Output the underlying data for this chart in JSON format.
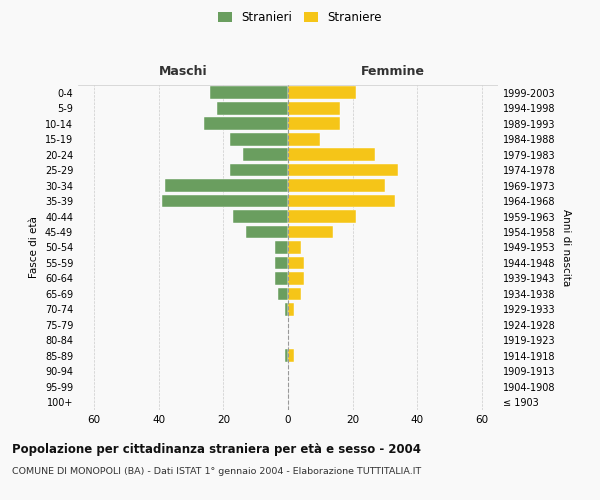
{
  "age_groups": [
    "100+",
    "95-99",
    "90-94",
    "85-89",
    "80-84",
    "75-79",
    "70-74",
    "65-69",
    "60-64",
    "55-59",
    "50-54",
    "45-49",
    "40-44",
    "35-39",
    "30-34",
    "25-29",
    "20-24",
    "15-19",
    "10-14",
    "5-9",
    "0-4"
  ],
  "birth_years": [
    "≤ 1903",
    "1904-1908",
    "1909-1913",
    "1914-1918",
    "1919-1923",
    "1924-1928",
    "1929-1933",
    "1934-1938",
    "1939-1943",
    "1944-1948",
    "1949-1953",
    "1954-1958",
    "1959-1963",
    "1964-1968",
    "1969-1973",
    "1974-1978",
    "1979-1983",
    "1984-1988",
    "1989-1993",
    "1994-1998",
    "1999-2003"
  ],
  "maschi": [
    0,
    0,
    0,
    1,
    0,
    0,
    1,
    3,
    4,
    4,
    4,
    13,
    17,
    39,
    38,
    18,
    14,
    18,
    26,
    22,
    24
  ],
  "femmine": [
    0,
    0,
    0,
    2,
    0,
    0,
    2,
    4,
    5,
    5,
    4,
    14,
    21,
    33,
    30,
    34,
    27,
    10,
    16,
    16,
    21
  ],
  "male_color": "#6a9e5f",
  "female_color": "#f5c518",
  "background_color": "#f9f9f9",
  "grid_color": "#cccccc",
  "xlim": 65,
  "title": "Popolazione per cittadinanza straniera per età e sesso - 2004",
  "subtitle": "COMUNE DI MONOPOLI (BA) - Dati ISTAT 1° gennaio 2004 - Elaborazione TUTTITALIA.IT",
  "xlabel_left": "Maschi",
  "xlabel_right": "Femmine",
  "ylabel_left": "Fasce di età",
  "ylabel_right": "Anni di nascita",
  "legend_male": "Stranieri",
  "legend_female": "Straniere",
  "bar_height": 0.82
}
